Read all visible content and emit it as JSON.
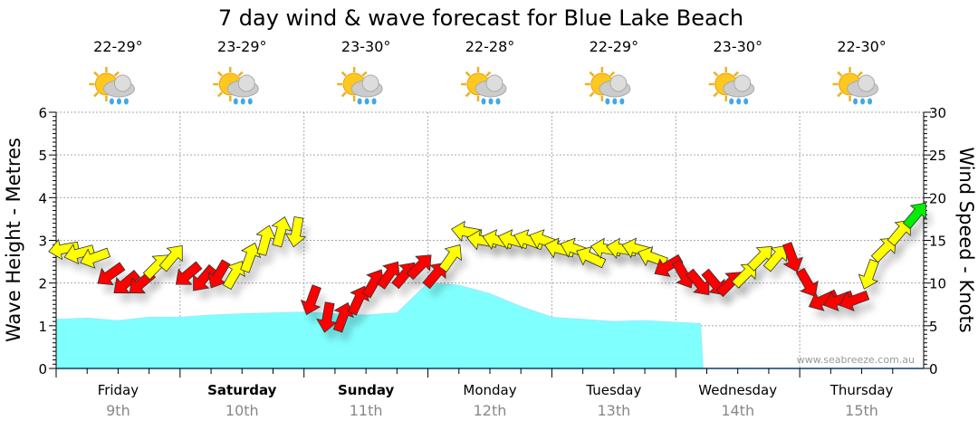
{
  "chart_data": {
    "type": "line",
    "title": "7 day wind & wave forecast for Blue Lake Beach",
    "ylabel": "Wave Height - Metres",
    "y2label": "Wind Speed - Knots",
    "ylim": [
      0,
      6
    ],
    "y2lim": [
      0,
      30
    ],
    "yticks": [
      "0",
      "1",
      "2",
      "3",
      "4",
      "5",
      "6"
    ],
    "y2ticks": [
      "0",
      "5",
      "10",
      "15",
      "20",
      "25",
      "30"
    ],
    "grid": true,
    "watermark": "www.seabreeze.com.au",
    "days": [
      {
        "name": "Friday",
        "date": "9th",
        "temp": "22-29°",
        "bold": false,
        "icon": "sun-cloud-rain-icon"
      },
      {
        "name": "Saturday",
        "date": "10th",
        "temp": "23-29°",
        "bold": true,
        "icon": "sun-cloud-rain-icon"
      },
      {
        "name": "Sunday",
        "date": "11th",
        "temp": "23-30°",
        "bold": true,
        "icon": "sun-cloud-rain-icon"
      },
      {
        "name": "Monday",
        "date": "12th",
        "temp": "22-28°",
        "bold": false,
        "icon": "sun-cloud-rain-icon"
      },
      {
        "name": "Tuesday",
        "date": "13th",
        "temp": "22-29°",
        "bold": false,
        "icon": "sun-cloud-rain-icon"
      },
      {
        "name": "Wednesday",
        "date": "14th",
        "temp": "23-30°",
        "bold": false,
        "icon": "sun-cloud-rain-icon"
      },
      {
        "name": "Thursday",
        "date": "15th",
        "temp": "22-30°",
        "bold": false,
        "icon": "sun-cloud-rain-icon"
      }
    ],
    "wave_series": {
      "name": "Wave Height (m)",
      "color": "#80ffff",
      "x_days": [
        0,
        0.25,
        0.5,
        0.75,
        1,
        1.25,
        1.5,
        1.75,
        2,
        2.25,
        2.5,
        2.75,
        3,
        3.25,
        3.5,
        3.75,
        4,
        4.25,
        4.5,
        4.75,
        5,
        5.2,
        5.22
      ],
      "values": [
        1.15,
        1.18,
        1.12,
        1.2,
        1.2,
        1.25,
        1.28,
        1.3,
        1.32,
        1.28,
        1.25,
        1.3,
        2.0,
        1.95,
        1.75,
        1.45,
        1.2,
        1.15,
        1.1,
        1.12,
        1.08,
        1.05,
        0
      ]
    },
    "wind_series": {
      "name": "Wind Speed (knots)",
      "colors": {
        "r": "#ff0000",
        "y": "#ffff00",
        "g": "#00ee00"
      },
      "speed": [
        14,
        13.5,
        13,
        11,
        10,
        10,
        12,
        13,
        11,
        10.5,
        11,
        11,
        13,
        15,
        16,
        16,
        8,
        6,
        6,
        8,
        10,
        11,
        11,
        12,
        11,
        13,
        16,
        15,
        15,
        15,
        15,
        15,
        14,
        14,
        13,
        14,
        14,
        14,
        13,
        12,
        11,
        10,
        10,
        10,
        11,
        13,
        13,
        13,
        10,
        8,
        8,
        8,
        11,
        14,
        16,
        18
      ],
      "heading": [
        260,
        255,
        250,
        235,
        230,
        230,
        45,
        40,
        230,
        220,
        210,
        30,
        20,
        15,
        15,
        190,
        200,
        190,
        20,
        25,
        30,
        35,
        40,
        45,
        40,
        35,
        280,
        280,
        285,
        285,
        290,
        290,
        285,
        290,
        295,
        280,
        280,
        285,
        290,
        240,
        150,
        140,
        140,
        45,
        45,
        45,
        40,
        160,
        150,
        245,
        250,
        250,
        200,
        45,
        40,
        40
      ],
      "category": [
        "y",
        "y",
        "y",
        "r",
        "r",
        "r",
        "y",
        "y",
        "r",
        "r",
        "r",
        "y",
        "y",
        "y",
        "y",
        "y",
        "r",
        "r",
        "r",
        "r",
        "r",
        "r",
        "r",
        "r",
        "r",
        "y",
        "y",
        "y",
        "y",
        "y",
        "y",
        "y",
        "y",
        "y",
        "y",
        "y",
        "y",
        "y",
        "y",
        "r",
        "r",
        "r",
        "r",
        "r",
        "y",
        "y",
        "y",
        "r",
        "r",
        "r",
        "r",
        "r",
        "y",
        "y",
        "y",
        "g"
      ]
    }
  }
}
